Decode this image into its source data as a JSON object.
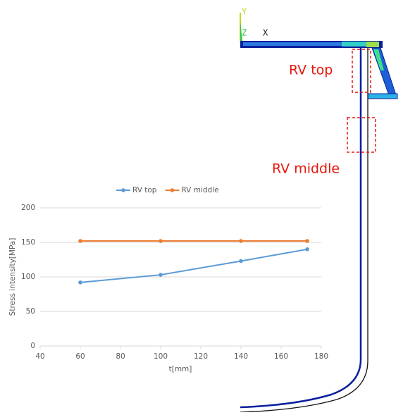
{
  "figure_labels": {
    "axis_y": "Y",
    "axis_z": "Z",
    "axis_x": "X",
    "box_top": "RV top",
    "box_middle": "RV middle"
  },
  "chart_data": {
    "type": "line",
    "x_label": "t[mm]",
    "y_label": "Stress intensity[MPa]",
    "x": [
      60,
      100,
      140,
      173
    ],
    "series": [
      {
        "name": "RV top",
        "color": "#5b9bd5",
        "values": [
          92,
          103,
          123,
          140
        ]
      },
      {
        "name": "RV middle",
        "color": "#ed7d31",
        "values": [
          152,
          152,
          152,
          152
        ]
      }
    ],
    "xlim": [
      40,
      180
    ],
    "xticks": [
      40,
      60,
      80,
      100,
      120,
      140,
      160,
      180
    ],
    "ylim": [
      0,
      200
    ],
    "yticks": [
      0,
      50,
      100,
      150,
      200
    ],
    "grid": true,
    "legend": "top"
  }
}
